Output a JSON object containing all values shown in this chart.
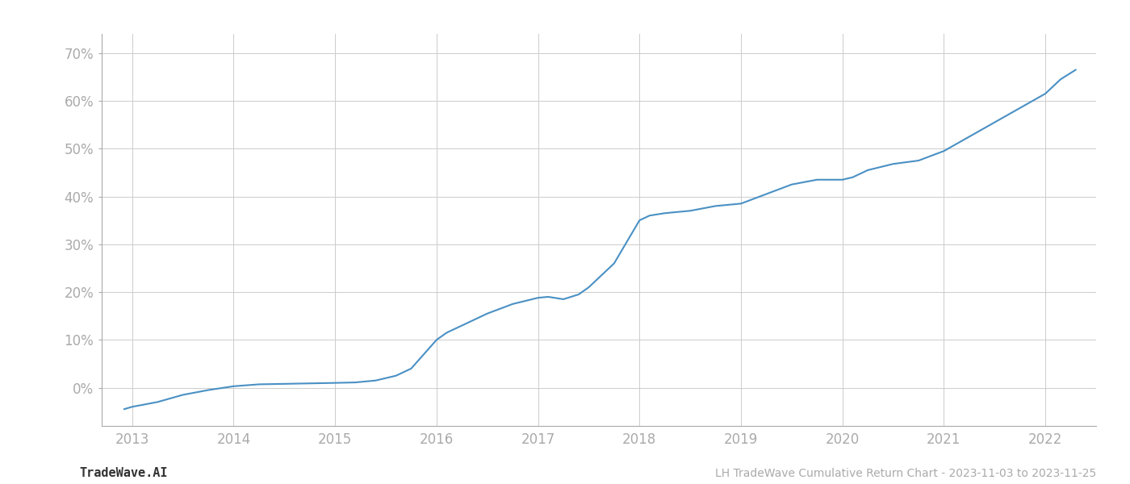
{
  "title_right": "LH TradeWave Cumulative Return Chart - 2023-11-03 to 2023-11-25",
  "title_left": "TradeWave.AI",
  "line_color": "#4a90c4",
  "background_color": "#ffffff",
  "grid_color": "#cccccc",
  "x_years": [
    2012.92,
    2013.0,
    2013.25,
    2013.5,
    2013.75,
    2014.0,
    2014.25,
    2014.5,
    2014.75,
    2015.0,
    2015.1,
    2015.2,
    2015.4,
    2015.6,
    2015.75,
    2016.0,
    2016.1,
    2016.25,
    2016.5,
    2016.75,
    2017.0,
    2017.1,
    2017.25,
    2017.4,
    2017.5,
    2017.6,
    2017.75,
    2018.0,
    2018.1,
    2018.25,
    2018.5,
    2018.75,
    2019.0,
    2019.25,
    2019.5,
    2019.75,
    2020.0,
    2020.1,
    2020.25,
    2020.5,
    2020.75,
    2021.0,
    2021.25,
    2021.5,
    2021.75,
    2022.0,
    2022.15,
    2022.3
  ],
  "y_values": [
    -4.5,
    -4.0,
    -3.0,
    -1.5,
    -0.5,
    0.3,
    0.7,
    0.8,
    0.9,
    1.0,
    1.05,
    1.1,
    1.5,
    2.5,
    4.0,
    10.0,
    11.5,
    13.0,
    15.5,
    17.5,
    18.8,
    19.0,
    18.5,
    19.5,
    21.0,
    23.0,
    26.0,
    35.0,
    36.0,
    36.5,
    37.0,
    38.0,
    38.5,
    40.5,
    42.5,
    43.5,
    43.5,
    44.0,
    45.5,
    46.8,
    47.5,
    49.5,
    52.5,
    55.5,
    58.5,
    61.5,
    64.5,
    66.5
  ],
  "xlim": [
    2012.7,
    2022.5
  ],
  "ylim": [
    -8,
    74
  ],
  "yticks": [
    0,
    10,
    20,
    30,
    40,
    50,
    60,
    70
  ],
  "xtick_labels": [
    "2013",
    "2014",
    "2015",
    "2016",
    "2017",
    "2018",
    "2019",
    "2020",
    "2021",
    "2022"
  ],
  "xtick_positions": [
    2013,
    2014,
    2015,
    2016,
    2017,
    2018,
    2019,
    2020,
    2021,
    2022
  ],
  "line_width": 1.5,
  "font_color_ticks": "#aaaaaa",
  "font_color_footer_left": "#333333",
  "font_color_footer_right": "#aaaaaa",
  "font_size_ticks": 12,
  "font_size_footer": 10
}
